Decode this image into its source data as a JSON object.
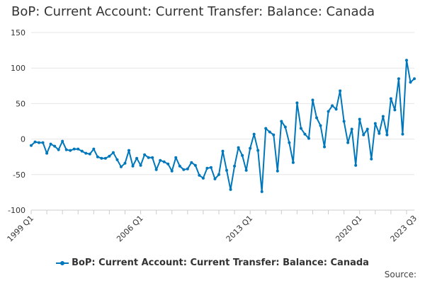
{
  "title": "BoP: Current Account: Current Transfer: Balance: Canada",
  "source_label": "Source:",
  "colors": {
    "series": "#0077bb",
    "grid": "#e6e6e6",
    "axis": "#cccccc",
    "text": "#333333"
  },
  "chart_data": {
    "type": "line",
    "title": "BoP: Current Account: Current Transfer: Balance: Canada",
    "xlabel": "",
    "ylabel": "",
    "ylim": [
      -100,
      150
    ],
    "yticks": [
      -100,
      -50,
      0,
      50,
      100,
      150
    ],
    "xtick_labels": [
      "1999 Q1",
      "2006 Q1",
      "2013 Q1",
      "2020 Q1",
      "2023 Q3"
    ],
    "xtick_positions": [
      0,
      28,
      56,
      84,
      98
    ],
    "grid": true,
    "legend_position": "bottom",
    "series": [
      {
        "name": "BoP: Current Account: Current Transfer: Balance: Canada",
        "values": [
          -9,
          -4,
          -5,
          -5,
          -20,
          -7,
          -10,
          -15,
          -3,
          -15,
          -16,
          -14,
          -14,
          -17,
          -20,
          -21,
          -14,
          -25,
          -27,
          -27,
          -24,
          -19,
          -29,
          -39,
          -34,
          -16,
          -38,
          -27,
          -37,
          -22,
          -26,
          -26,
          -43,
          -30,
          -32,
          -35,
          -45,
          -26,
          -38,
          -43,
          -42,
          -33,
          -37,
          -51,
          -55,
          -41,
          -40,
          -56,
          -50,
          -17,
          -44,
          -71,
          -38,
          -12,
          -23,
          -44,
          -13,
          7,
          -16,
          -74,
          15,
          10,
          6,
          -45,
          25,
          17,
          -5,
          -33,
          51,
          15,
          7,
          1,
          55,
          30,
          19,
          -11,
          39,
          47,
          42,
          68,
          25,
          -5,
          14,
          -37,
          28,
          6,
          14,
          -28,
          22,
          8,
          32,
          6,
          57,
          41,
          85,
          7,
          111,
          80,
          85
        ]
      }
    ]
  }
}
